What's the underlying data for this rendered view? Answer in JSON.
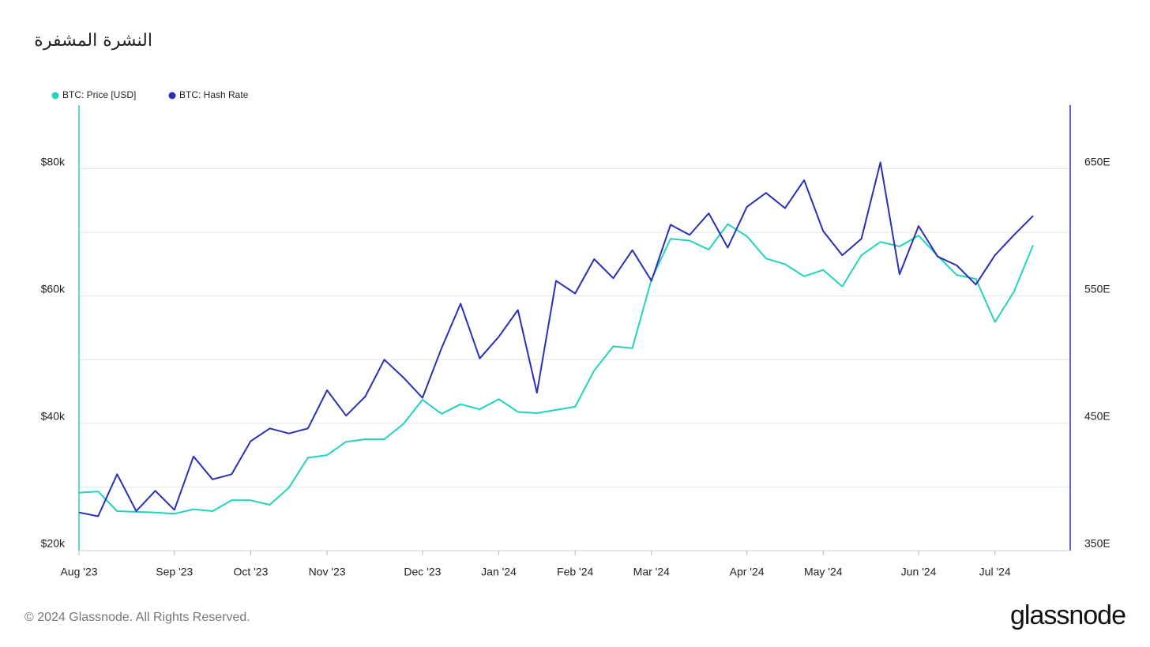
{
  "chart_data": {
    "type": "line",
    "title": "النشرة المشفرة",
    "footer": "© 2024 Glassnode. All Rights Reserved.",
    "brand": "glassnode",
    "categories": [
      "Aug '23",
      null,
      null,
      null,
      null,
      "Sep '23",
      null,
      null,
      null,
      "Oct '23",
      null,
      null,
      null,
      "Nov '23",
      null,
      null,
      null,
      null,
      "Dec '23",
      null,
      null,
      null,
      "Jan '24",
      null,
      null,
      null,
      "Feb '24",
      null,
      null,
      null,
      "Mar '24",
      null,
      null,
      null,
      null,
      "Apr '24",
      null,
      null,
      null,
      "May '24",
      null,
      null,
      null,
      null,
      "Jun '24",
      null,
      null,
      null,
      "Jul '24",
      null,
      null
    ],
    "series": [
      {
        "name": "BTC: Price [USD]",
        "color": "#22d3bd",
        "axis": "y",
        "values": [
          29100,
          29300,
          26200,
          26100,
          26000,
          25800,
          26500,
          26200,
          27900,
          27900,
          27200,
          29900,
          34600,
          35000,
          37100,
          37500,
          37500,
          39900,
          43700,
          41500,
          43000,
          42200,
          43800,
          41800,
          41600,
          42100,
          42600,
          48300,
          52100,
          51800,
          62600,
          69000,
          68700,
          67300,
          71300,
          69400,
          65900,
          65000,
          63100,
          64100,
          61500,
          66400,
          68500,
          67800,
          69500,
          66300,
          63300,
          62700,
          55900,
          60700,
          68000
        ]
      },
      {
        "name": "BTC: Hash Rate",
        "color": "#2a2fb8",
        "axis": "y2",
        "values": [
          380,
          377,
          410,
          381,
          397,
          382,
          424,
          406,
          410,
          436,
          446,
          442,
          446,
          476,
          456,
          471,
          500,
          486,
          470,
          509,
          544,
          501,
          518,
          539,
          474,
          562,
          552,
          579,
          564,
          586,
          562,
          606,
          598,
          615,
          588,
          620,
          631,
          619,
          641,
          601,
          582,
          595,
          655,
          567,
          605,
          581,
          574,
          559,
          582,
          598,
          613
        ]
      }
    ],
    "ylim": [
      20000,
      90000
    ],
    "yticks": [
      {
        "value": 20000,
        "label": "$20k"
      },
      {
        "value": 40000,
        "label": "$40k"
      },
      {
        "value": 60000,
        "label": "$60k"
      },
      {
        "value": 80000,
        "label": "$80k"
      }
    ],
    "minor_yticks": [
      30000,
      50000,
      70000
    ],
    "y2lim": [
      350,
      700
    ],
    "y2ticks": [
      {
        "value": 350,
        "label": "350E"
      },
      {
        "value": 450,
        "label": "450E"
      },
      {
        "value": 550,
        "label": "550E"
      },
      {
        "value": 650,
        "label": "650E"
      }
    ],
    "grid": true,
    "legend": "top-left"
  }
}
